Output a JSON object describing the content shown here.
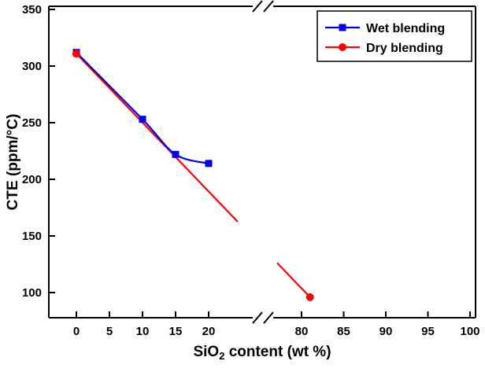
{
  "chart_data": {
    "type": "line",
    "title": "",
    "xlabel": "SiO2 content (wt %)",
    "xlabel_parts": {
      "pre": "SiO",
      "sub": "2",
      "post": "  content (wt %)"
    },
    "ylabel": "CTE (ppm/°C)",
    "x_axis": {
      "broken_axis": true,
      "left_ticks": [
        0,
        5,
        10,
        15,
        20
      ],
      "right_ticks": [
        80,
        85,
        90,
        95,
        100
      ],
      "grid": false
    },
    "y_axis": {
      "ticks": [
        100,
        150,
        200,
        250,
        300,
        350
      ],
      "range": [
        78,
        353
      ],
      "grid": false
    },
    "series": [
      {
        "name": "Wet blending",
        "color": "#0000ee",
        "marker": "square",
        "line_style": "smooth",
        "points": [
          [
            0,
            312
          ],
          [
            10,
            253
          ],
          [
            15,
            222
          ],
          [
            20,
            214
          ]
        ]
      },
      {
        "name": "Dry blending",
        "color": "#ff0000",
        "marker": "circle",
        "line_style": "straight-with-gap-at-axis-break",
        "points": [
          [
            0,
            311
          ],
          [
            81,
            96
          ]
        ]
      }
    ],
    "legend": {
      "position": "top-right",
      "border": true,
      "entries": [
        "Wet blending",
        "Dry blending"
      ]
    }
  },
  "colors": {
    "axis": "#000000",
    "background": "#ffffff",
    "wet_blending": "#0000ee",
    "dry_blending": "#ff0000"
  }
}
